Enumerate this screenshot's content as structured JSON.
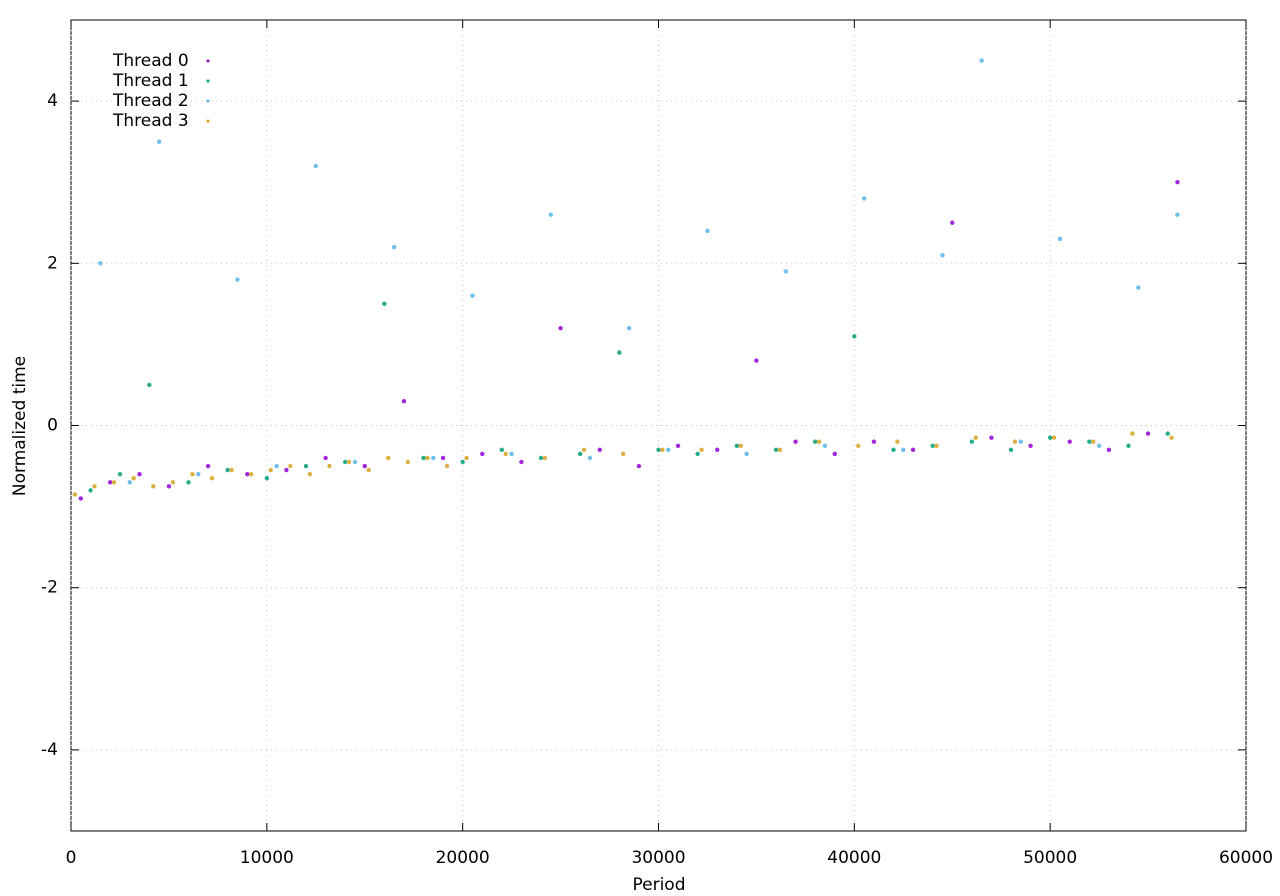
{
  "chart_data": {
    "type": "scatter",
    "xlabel": "Period",
    "ylabel": "Normalized time",
    "xlim": [
      0,
      60000
    ],
    "ylim": [
      -5,
      5
    ],
    "xticks": [
      0,
      10000,
      20000,
      30000,
      40000,
      50000,
      60000
    ],
    "yticks": [
      -4,
      -2,
      0,
      2,
      4
    ],
    "grid": true,
    "legend": "top-left",
    "series": [
      {
        "name": "Thread 0",
        "color": "#9400d3",
        "x": [
          500,
          2000,
          3500,
          5000,
          7000,
          9000,
          11000,
          13000,
          15000,
          17000,
          19000,
          21000,
          23000,
          25000,
          27000,
          29000,
          31000,
          33000,
          35000,
          37000,
          39000,
          41000,
          43000,
          45000,
          47000,
          49000,
          51000,
          53000,
          55000,
          56500
        ],
        "values": [
          -0.9,
          -0.7,
          -0.6,
          -0.75,
          -0.5,
          -0.6,
          -0.55,
          -0.4,
          -0.5,
          0.3,
          -0.4,
          -0.35,
          -0.45,
          1.2,
          -0.3,
          -0.5,
          -0.25,
          -0.3,
          0.8,
          -0.2,
          -0.35,
          -0.2,
          -0.3,
          2.5,
          -0.15,
          -0.25,
          -0.2,
          -0.3,
          -0.1,
          3.0
        ]
      },
      {
        "name": "Thread 1",
        "color": "#009e73",
        "x": [
          1000,
          2500,
          4000,
          6000,
          8000,
          10000,
          12000,
          14000,
          16000,
          18000,
          20000,
          22000,
          24000,
          26000,
          28000,
          30000,
          32000,
          34000,
          36000,
          38000,
          40000,
          42000,
          44000,
          46000,
          48000,
          50000,
          52000,
          54000,
          56000
        ],
        "values": [
          -0.8,
          -0.6,
          0.5,
          -0.7,
          -0.55,
          -0.65,
          -0.5,
          -0.45,
          1.5,
          -0.4,
          -0.45,
          -0.3,
          -0.4,
          -0.35,
          0.9,
          -0.3,
          -0.35,
          -0.25,
          -0.3,
          -0.2,
          1.1,
          -0.3,
          -0.25,
          -0.2,
          -0.3,
          -0.15,
          -0.2,
          -0.25,
          -0.1
        ]
      },
      {
        "name": "Thread 2",
        "color": "#56b4e9",
        "x": [
          1500,
          3000,
          4500,
          6500,
          8500,
          10500,
          12500,
          14500,
          16500,
          18500,
          20500,
          22500,
          24500,
          26500,
          28500,
          30500,
          32500,
          34500,
          36500,
          38500,
          40500,
          42500,
          44500,
          46500,
          48500,
          50500,
          52500,
          54500,
          56500
        ],
        "values": [
          2.0,
          -0.7,
          3.5,
          -0.6,
          1.8,
          -0.5,
          3.2,
          -0.45,
          2.2,
          -0.4,
          1.6,
          -0.35,
          2.6,
          -0.4,
          1.2,
          -0.3,
          2.4,
          -0.35,
          1.9,
          -0.25,
          2.8,
          -0.3,
          2.1,
          4.5,
          -0.2,
          2.3,
          -0.25,
          1.7,
          2.6
        ]
      },
      {
        "name": "Thread 3",
        "color": "#d4a21f",
        "x": [
          200,
          1200,
          2200,
          3200,
          4200,
          5200,
          6200,
          7200,
          8200,
          9200,
          10200,
          11200,
          12200,
          13200,
          14200,
          15200,
          16200,
          17200,
          18200,
          19200,
          20200,
          22200,
          24200,
          26200,
          28200,
          30200,
          32200,
          34200,
          36200,
          38200,
          40200,
          42200,
          44200,
          46200,
          48200,
          50200,
          52200,
          54200,
          56200
        ],
        "values": [
          -0.85,
          -0.75,
          -0.7,
          -0.65,
          -0.75,
          -0.7,
          -0.6,
          -0.65,
          -0.55,
          -0.6,
          -0.55,
          -0.5,
          -0.6,
          -0.5,
          -0.45,
          -0.55,
          -0.4,
          -0.45,
          -0.4,
          -0.5,
          -0.4,
          -0.35,
          -0.4,
          -0.3,
          -0.35,
          -0.3,
          -0.3,
          -0.25,
          -0.3,
          -0.2,
          -0.25,
          -0.2,
          -0.25,
          -0.15,
          -0.2,
          -0.15,
          -0.2,
          -0.1,
          -0.15
        ]
      }
    ]
  }
}
